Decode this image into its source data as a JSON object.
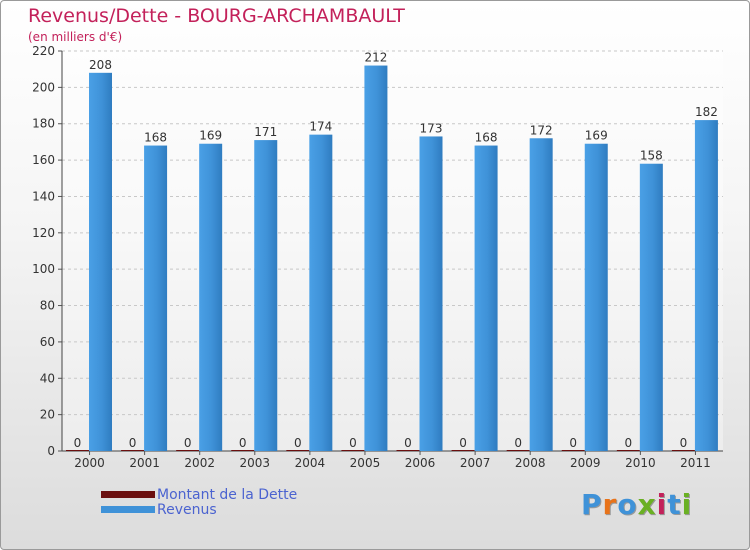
{
  "chart_data": {
    "type": "bar",
    "title": "Revenus/Dette - BOURG-ARCHAMBAULT",
    "subtitle": "(en milliers d'€)",
    "xlabel": "",
    "ylabel": "",
    "ylim": [
      0,
      220
    ],
    "yticks": [
      0,
      20,
      40,
      60,
      80,
      100,
      120,
      140,
      160,
      180,
      200,
      220
    ],
    "grid": true,
    "categories": [
      "2000",
      "2001",
      "2002",
      "2003",
      "2004",
      "2005",
      "2006",
      "2007",
      "2008",
      "2009",
      "2010",
      "2011"
    ],
    "series": [
      {
        "name": "Montant de la Dette",
        "color": "#6b0f0f",
        "values": [
          0,
          0,
          0,
          0,
          0,
          0,
          0,
          0,
          0,
          0,
          0,
          0
        ]
      },
      {
        "name": "Revenus",
        "color": "#3f92d8",
        "values": [
          208,
          168,
          169,
          171,
          174,
          212,
          173,
          168,
          172,
          169,
          158,
          182
        ]
      }
    ],
    "legend_position": "bottom-left"
  },
  "logo": {
    "text": "Proxiti",
    "colors": [
      "#3f92d8",
      "#e8731a",
      "#3f92d8",
      "#6ab023",
      "#c3215a",
      "#3f92d8",
      "#6ab023"
    ]
  }
}
